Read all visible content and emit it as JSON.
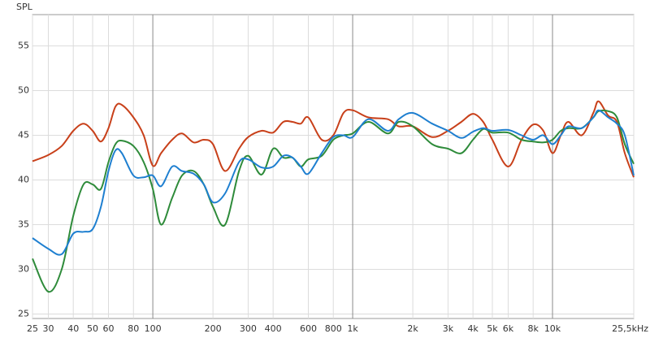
{
  "chart_data": {
    "type": "line",
    "y_label": "SPL",
    "x_scale": "log",
    "grid": true,
    "xlim": [
      25,
      25500
    ],
    "ylim": [
      24.5,
      58.5
    ],
    "xticks": [
      25,
      30,
      40,
      50,
      60,
      80,
      100,
      200,
      300,
      400,
      600,
      800,
      {
        "value": 1000,
        "label": "1k"
      },
      {
        "value": 2000,
        "label": "2k"
      },
      {
        "value": 3000,
        "label": "3k"
      },
      {
        "value": 4000,
        "label": "4k"
      },
      {
        "value": 5000,
        "label": "5k"
      },
      {
        "value": 6000,
        "label": "6k"
      },
      {
        "value": 8000,
        "label": "8k"
      },
      {
        "value": 10000,
        "label": "10k"
      },
      {
        "value": 25500,
        "label": "25,5kHz"
      }
    ],
    "yticks": [
      25,
      30,
      35,
      40,
      45,
      50,
      55
    ],
    "x": [
      25,
      30,
      35,
      40,
      45,
      50,
      55,
      60,
      65,
      70,
      80,
      90,
      100,
      110,
      125,
      140,
      160,
      180,
      200,
      230,
      270,
      300,
      350,
      400,
      450,
      500,
      550,
      600,
      700,
      800,
      900,
      1000,
      1200,
      1500,
      1700,
      2000,
      2500,
      3000,
      3500,
      4000,
      4500,
      5000,
      6000,
      7000,
      8000,
      9000,
      10000,
      11000,
      12000,
      14000,
      16000,
      17000,
      19000,
      21000,
      23000,
      25500
    ],
    "series": [
      {
        "name": "red",
        "color": "#c8401a",
        "values": [
          42.1,
          42.8,
          43.8,
          45.5,
          46.3,
          45.5,
          44.3,
          45.8,
          48.2,
          48.4,
          47,
          45,
          41.6,
          43,
          44.5,
          45.2,
          44.2,
          44.5,
          44,
          41,
          43.5,
          44.8,
          45.5,
          45.3,
          46.5,
          46.5,
          46.3,
          47,
          44.5,
          45,
          47.5,
          47.8,
          47,
          46.8,
          46,
          46,
          44.8,
          45.5,
          46.5,
          47.4,
          46.5,
          44.5,
          41.5,
          44.5,
          46.2,
          45.5,
          43,
          45,
          46.5,
          45,
          47.5,
          48.8,
          47.2,
          46.5,
          43,
          40.3
        ]
      },
      {
        "name": "green",
        "color": "#2e8b3a",
        "values": [
          31.2,
          27.5,
          30,
          36,
          39.5,
          39.5,
          39,
          42,
          44,
          44.4,
          43.8,
          42,
          39,
          35,
          38,
          40.5,
          41,
          39.5,
          37,
          35,
          41,
          42.7,
          40.6,
          43.5,
          42.5,
          42.5,
          41.5,
          42.3,
          42.7,
          44.5,
          45,
          45.2,
          46.5,
          45.2,
          46.5,
          46,
          44,
          43.5,
          43,
          44.5,
          45.7,
          45.3,
          45.3,
          44.5,
          44.3,
          44.2,
          44.5,
          45.5,
          45.8,
          45.8,
          47,
          47.7,
          47.7,
          47,
          44,
          41.8
        ]
      },
      {
        "name": "blue",
        "color": "#1e7fd0",
        "values": [
          33.5,
          32.3,
          31.7,
          34,
          34.2,
          34.5,
          37,
          41,
          43.3,
          43,
          40.5,
          40.3,
          40.5,
          39.3,
          41.5,
          41,
          40.7,
          39.5,
          37.5,
          38.5,
          42,
          42.3,
          41.4,
          41.5,
          42.7,
          42.5,
          41.5,
          40.7,
          43,
          44.8,
          45,
          44.8,
          46.8,
          45.5,
          46.8,
          47.5,
          46.3,
          45.5,
          44.7,
          45.4,
          45.8,
          45.5,
          45.6,
          45,
          44.5,
          45,
          44,
          45,
          46,
          45.8,
          47,
          47.8,
          47,
          46.3,
          45,
          40.5
        ]
      }
    ]
  }
}
